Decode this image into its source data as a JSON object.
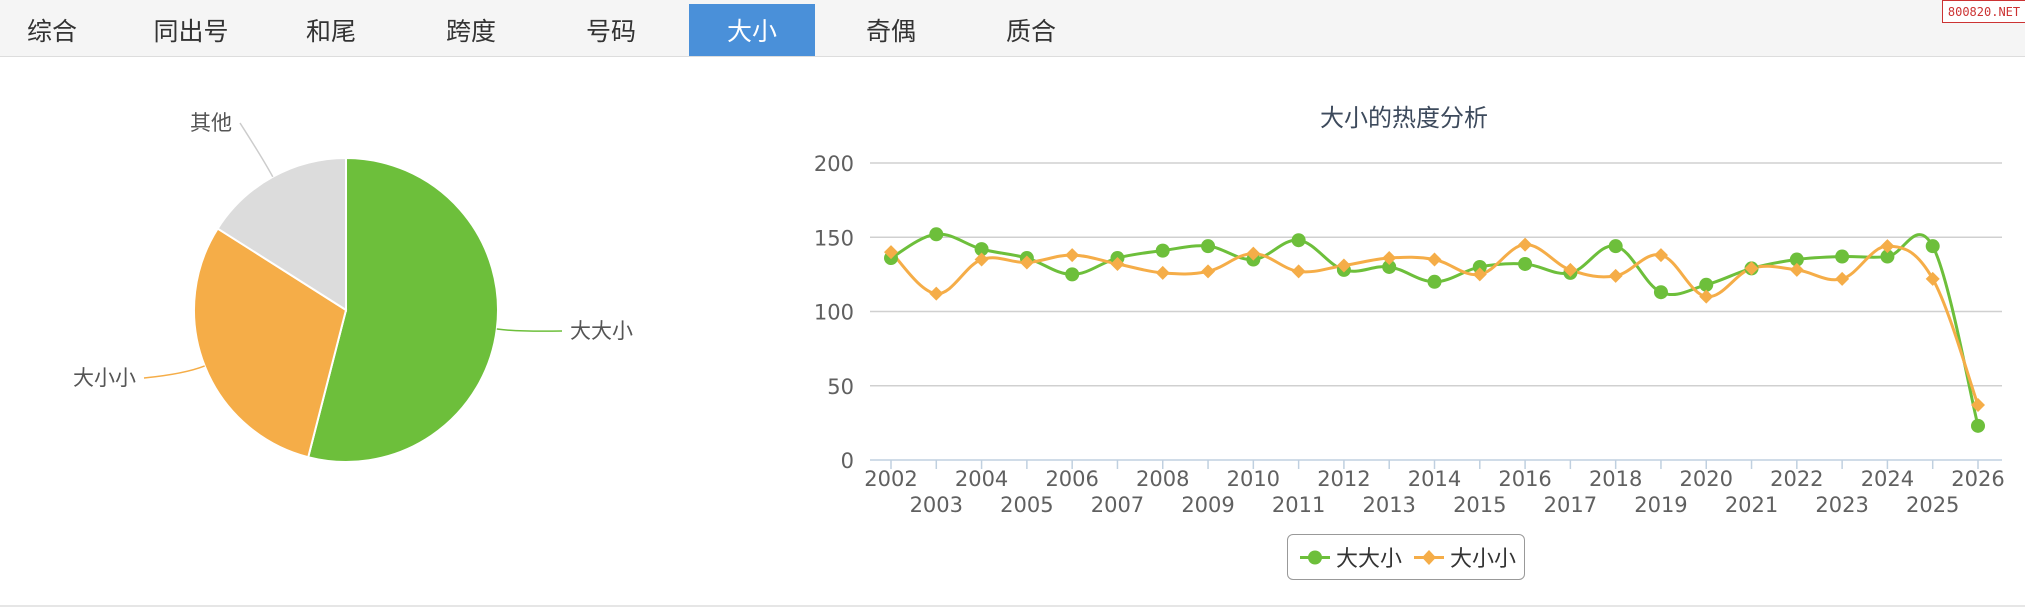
{
  "tabs": [
    {
      "label": "综合",
      "active": false
    },
    {
      "label": "同出号",
      "active": false
    },
    {
      "label": "和尾",
      "active": false
    },
    {
      "label": "跨度",
      "active": false
    },
    {
      "label": "号码",
      "active": false
    },
    {
      "label": "大小",
      "active": true
    },
    {
      "label": "奇偶",
      "active": false
    },
    {
      "label": "质合",
      "active": false
    }
  ],
  "watermark": "800820.NET",
  "colors": {
    "green": "#6dbf3b",
    "orange": "#f5ad48",
    "gray": "#dcdcdc",
    "active_tab": "#4a90d9"
  },
  "chart_data": [
    {
      "type": "pie",
      "title": "",
      "slices": [
        {
          "label": "大大小",
          "value": 54,
          "color": "#6dbf3b"
        },
        {
          "label": "大小小",
          "value": 30,
          "color": "#f5ad48"
        },
        {
          "label": "其他",
          "value": 16,
          "color": "#dcdcdc"
        }
      ]
    },
    {
      "type": "line",
      "title": "大小的热度分析",
      "xlabel": "",
      "ylabel": "",
      "ylim": [
        0,
        200
      ],
      "yticks": [
        0,
        50,
        100,
        150,
        200
      ],
      "categories": [
        "2002",
        "2003",
        "2004",
        "2005",
        "2006",
        "2007",
        "2008",
        "2009",
        "2010",
        "2011",
        "2012",
        "2013",
        "2014",
        "2015",
        "2016",
        "2017",
        "2018",
        "2019",
        "2020",
        "2021",
        "2022",
        "2023",
        "2024",
        "2025",
        "2026"
      ],
      "grid": true,
      "legend_position": "bottom-center",
      "series": [
        {
          "name": "大大小",
          "color": "#6dbf3b",
          "marker": "circle",
          "values": [
            136,
            152,
            142,
            136,
            125,
            136,
            141,
            144,
            135,
            148,
            128,
            130,
            120,
            130,
            132,
            126,
            144,
            113,
            118,
            129,
            135,
            137,
            137,
            144,
            23
          ]
        },
        {
          "name": "大小小",
          "color": "#f5ad48",
          "marker": "diamond",
          "values": [
            140,
            112,
            135,
            133,
            138,
            132,
            126,
            127,
            139,
            127,
            131,
            136,
            135,
            125,
            145,
            128,
            124,
            138,
            110,
            129,
            128,
            122,
            144,
            122,
            37
          ]
        }
      ]
    }
  ]
}
